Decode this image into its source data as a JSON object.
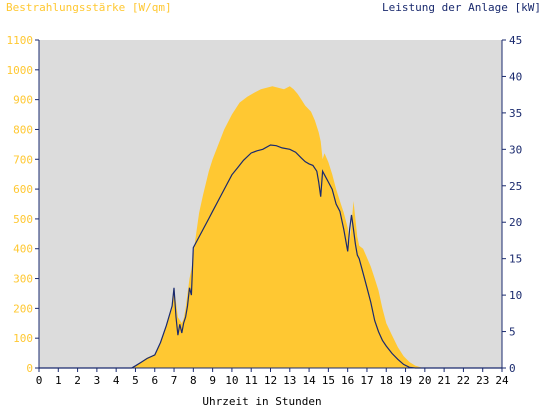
{
  "chart_data": {
    "type": "area",
    "left_axis_label": "Bestrahlungsstärke [W/qm]",
    "right_axis_label": "Leistung der Anlage [kW]",
    "xlabel": "Uhrzeit in Stunden",
    "xlim": [
      0,
      24
    ],
    "x_ticks": [
      0,
      1,
      2,
      3,
      4,
      5,
      6,
      7,
      8,
      9,
      10,
      11,
      12,
      13,
      14,
      15,
      16,
      17,
      18,
      19,
      20,
      21,
      22,
      23,
      24
    ],
    "ylim_left": [
      0,
      1100
    ],
    "y_ticks_left": [
      0,
      100,
      200,
      300,
      400,
      500,
      600,
      700,
      800,
      900,
      1000,
      1100
    ],
    "ylim_right": [
      0,
      45
    ],
    "y_ticks_right": [
      0,
      5,
      10,
      15,
      20,
      25,
      30,
      35,
      40,
      45
    ],
    "grid": false,
    "colors": {
      "plot_background": "#dcdcdc",
      "irradiance_fill": "#ffc832",
      "power_line": "#1a2a6e",
      "left_axis_text": "#ffc832",
      "right_axis_text": "#1a2a6e",
      "axis_line": "#1a2a6e"
    },
    "series": [
      {
        "axis": "left",
        "style": "area",
        "x": [
          0,
          4.9,
          5.0,
          5.3,
          5.6,
          6.0,
          6.3,
          6.6,
          6.9,
          7.0,
          7.1,
          7.2,
          7.4,
          7.5,
          7.6,
          7.8,
          7.9,
          8.0,
          8.1,
          8.3,
          8.5,
          8.8,
          9.0,
          9.3,
          9.6,
          10.0,
          10.4,
          10.8,
          11.2,
          11.5,
          11.8,
          12.1,
          12.4,
          12.7,
          13.0,
          13.2,
          13.4,
          13.6,
          13.8,
          14.1,
          14.3,
          14.5,
          14.6,
          14.7,
          14.8,
          15.0,
          15.2,
          15.4,
          15.6,
          15.8,
          16.0,
          16.1,
          16.2,
          16.3,
          16.4,
          16.5,
          16.6,
          16.8,
          17.0,
          17.2,
          17.4,
          17.6,
          17.8,
          18.0,
          18.3,
          18.6,
          18.9,
          19.2,
          19.5,
          19.8,
          20.0,
          20.2,
          20.5,
          24
        ],
        "values": [
          0,
          0,
          8,
          20,
          35,
          45,
          80,
          140,
          200,
          260,
          220,
          170,
          150,
          165,
          200,
          300,
          330,
          380,
          430,
          520,
          580,
          660,
          700,
          750,
          800,
          850,
          890,
          910,
          925,
          935,
          940,
          945,
          940,
          935,
          945,
          935,
          920,
          900,
          880,
          860,
          830,
          790,
          760,
          700,
          720,
          690,
          650,
          600,
          560,
          520,
          470,
          420,
          480,
          560,
          500,
          440,
          410,
          400,
          370,
          340,
          300,
          260,
          200,
          150,
          110,
          70,
          40,
          20,
          8,
          2,
          0,
          0,
          0,
          0
        ]
      },
      {
        "axis": "right",
        "style": "line",
        "x": [
          0,
          4.8,
          5.0,
          5.3,
          5.6,
          6.0,
          6.3,
          6.6,
          6.9,
          7.0,
          7.1,
          7.2,
          7.3,
          7.4,
          7.5,
          7.6,
          7.7,
          7.8,
          7.9,
          8.0,
          8.2,
          8.5,
          8.8,
          9.0,
          9.3,
          9.6,
          10.0,
          10.3,
          10.6,
          11.0,
          11.3,
          11.6,
          12.0,
          12.3,
          12.6,
          13.0,
          13.3,
          13.6,
          13.8,
          14.0,
          14.2,
          14.4,
          14.5,
          14.6,
          14.7,
          14.8,
          15.0,
          15.2,
          15.4,
          15.6,
          15.8,
          16.0,
          16.1,
          16.2,
          16.3,
          16.4,
          16.5,
          16.6,
          16.8,
          17.0,
          17.2,
          17.4,
          17.6,
          17.8,
          18.0,
          18.3,
          18.6,
          18.9,
          19.2,
          19.5,
          19.8,
          20.0,
          20.2,
          24
        ],
        "values": [
          0,
          0,
          0.3,
          0.8,
          1.3,
          1.8,
          3.5,
          5.8,
          8.5,
          11,
          7,
          4.5,
          6,
          4.8,
          6.2,
          7,
          8.5,
          11,
          10,
          16.5,
          17.5,
          19,
          20.5,
          21.5,
          23,
          24.5,
          26.5,
          27.5,
          28.5,
          29.5,
          29.8,
          30,
          30.6,
          30.5,
          30.2,
          30,
          29.6,
          28.8,
          28.3,
          28,
          27.8,
          27,
          25.5,
          23.5,
          27,
          26.5,
          25.5,
          24.5,
          22.5,
          21.5,
          19,
          16,
          19,
          21,
          19,
          17,
          15.5,
          15,
          13,
          11,
          9,
          6.5,
          5,
          3.8,
          3,
          2,
          1.2,
          0.5,
          0.1,
          0,
          0,
          0,
          0,
          0
        ]
      }
    ]
  }
}
